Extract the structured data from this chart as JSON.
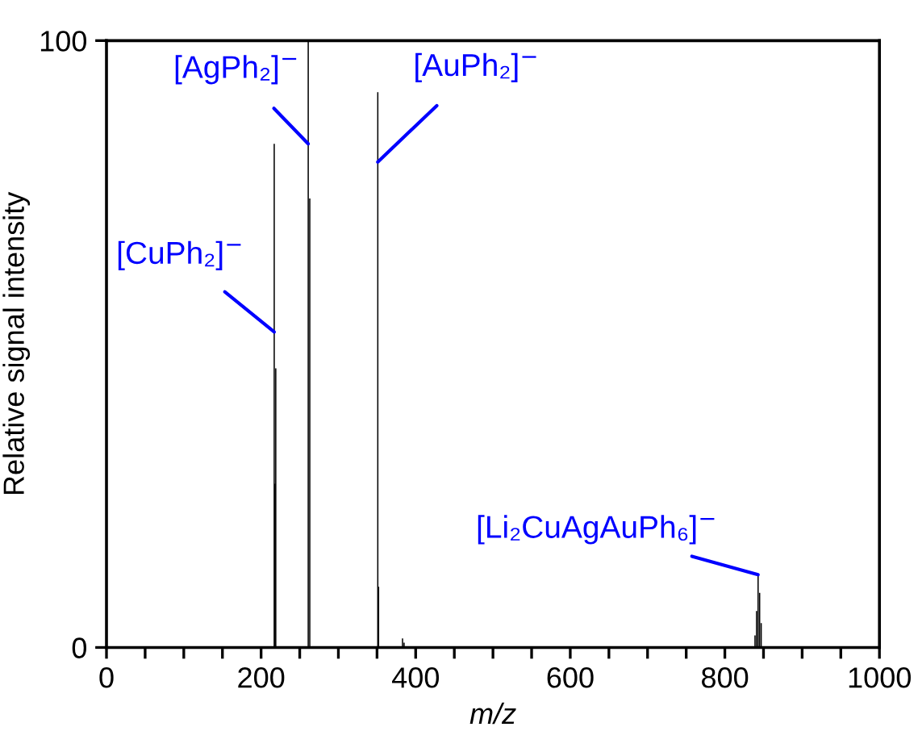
{
  "chart_data": {
    "type": "bar",
    "xlabel": "m/z",
    "ylabel": "Relative signal intensity",
    "x": [
      217,
      218,
      219,
      261,
      263,
      351,
      352,
      383,
      385,
      839,
      841,
      843,
      845,
      847
    ],
    "values": [
      83,
      27,
      46,
      100,
      74,
      91.5,
      10,
      1.5,
      0.8,
      2,
      6,
      12,
      9,
      4
    ],
    "color": "#000000",
    "xlim": [
      0,
      1000
    ],
    "ylim": [
      0,
      100
    ],
    "xticks": [
      0,
      {
        "value": 50,
        "label": null
      },
      {
        "value": 100,
        "label": null
      },
      {
        "value": 150,
        "label": null
      },
      200,
      {
        "value": 250,
        "label": null
      },
      {
        "value": 300,
        "label": null
      },
      {
        "value": 350,
        "label": null
      },
      400,
      {
        "value": 450,
        "label": null
      },
      {
        "value": 500,
        "label": null
      },
      {
        "value": 550,
        "label": null
      },
      600,
      {
        "value": 650,
        "label": null
      },
      {
        "value": 700,
        "label": null
      },
      {
        "value": 750,
        "label": null
      },
      800,
      {
        "value": 850,
        "label": null
      },
      {
        "value": 900,
        "label": null
      },
      {
        "value": 950,
        "label": null
      },
      1000
    ],
    "yticks": [
      0,
      100
    ],
    "grid": false,
    "legend": false,
    "annotations": [
      {
        "text": "[CuPh₂]$^{−}$",
        "x": 217,
        "y": 52
      },
      {
        "text": "[AgPh₂]$^{−}$",
        "x": 261,
        "y": 83
      },
      {
        "text": "[AuPh₂]$^{−}$",
        "x": 351,
        "y": 80
      },
      {
        "text": "[Li₂CuAgAuPh₆]$^{−}$",
        "x": 843,
        "y": 12
      }
    ]
  }
}
